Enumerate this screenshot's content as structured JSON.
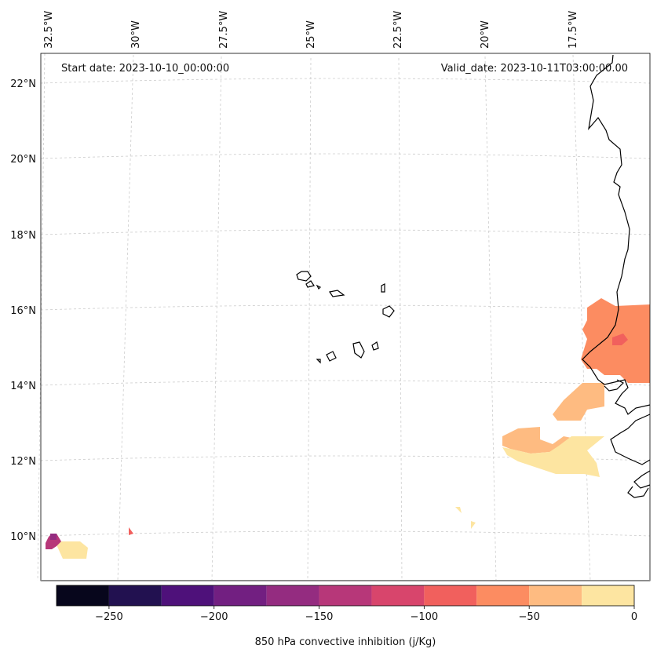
{
  "map": {
    "start_label": "Start date: 2023-10-10_00:00:00",
    "valid_label": "Valid_date: 2023-10-11T03:00:00.00",
    "lon_labels": [
      "32.5°W",
      "30°W",
      "27.5°W",
      "25°W",
      "22.5°W",
      "20°W",
      "17.5°W"
    ],
    "lat_labels": [
      "22°N",
      "20°N",
      "18°N",
      "16°N",
      "14°N",
      "12°N",
      "10°N"
    ],
    "gridlines": true
  },
  "colorbar": {
    "label": "850 hPa convective inhibition (j/Kg)",
    "ticks": [
      "−250",
      "−200",
      "−150",
      "−100",
      "−50",
      "0"
    ],
    "levels": [
      -275,
      -250,
      -225,
      -200,
      -175,
      -150,
      -125,
      -100,
      -75,
      -50,
      -25,
      0
    ],
    "colors": [
      "#07061c",
      "#221150",
      "#4e117a",
      "#721f81",
      "#942c80",
      "#b73779",
      "#d8456c",
      "#f1605d",
      "#fc8c61",
      "#febb81",
      "#fde5a1"
    ]
  }
}
